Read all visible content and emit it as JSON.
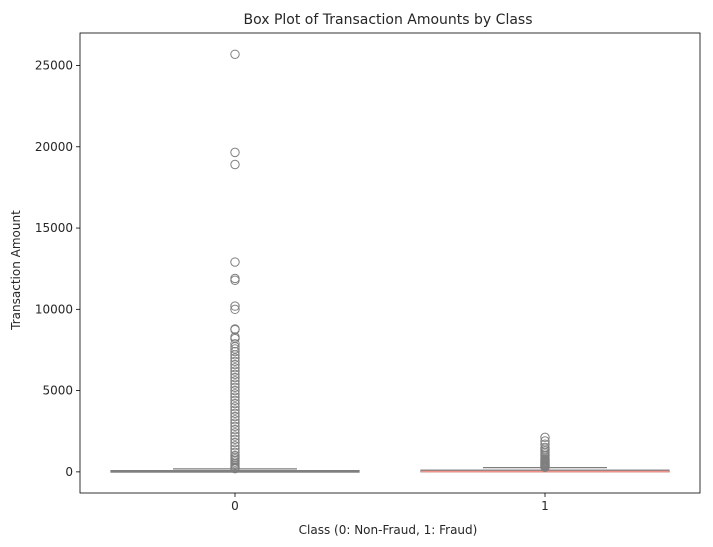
{
  "chart_data": {
    "type": "box",
    "title": "Box Plot of Transaction Amounts by Class",
    "xlabel": "Class (0: Non-Fraud, 1: Fraud)",
    "ylabel": "Transaction Amount",
    "categories": [
      "0",
      "1"
    ],
    "ylim": [
      -1300,
      27000
    ],
    "yticks": [
      0,
      5000,
      10000,
      15000,
      20000,
      25000
    ],
    "grid": false,
    "legend": "none",
    "colors": {
      "box0": "#7fb2d5",
      "box1": "#f2928a",
      "lines": "#7f7f7f",
      "median1": "#f2928a"
    },
    "boxes": [
      {
        "category": "0",
        "q1": 5.6,
        "median": 22,
        "q3": 77,
        "whisker_low": 0,
        "whisker_high": 185,
        "outliers": [
          25691,
          19656,
          18910,
          12910,
          11898,
          11789,
          10199,
          10000,
          8790,
          8750,
          8300,
          8200,
          7880,
          7700,
          7560,
          7400,
          7200,
          7000,
          6800,
          6600,
          6400,
          6200,
          6000,
          5800,
          5600,
          5400,
          5200,
          5000,
          4800,
          4600,
          4400,
          4200,
          4000,
          3800,
          3600,
          3400,
          3200,
          3000,
          2800,
          2600,
          2400,
          2200,
          2000,
          1800,
          1600,
          1400,
          1200,
          1000,
          900,
          800,
          700,
          600,
          500,
          400,
          300,
          250,
          200
        ]
      },
      {
        "category": "1",
        "q1": 1,
        "median": 9.3,
        "q3": 106,
        "whisker_low": 0,
        "whisker_high": 260,
        "outliers": [
          2125,
          1900,
          1700,
          1500,
          1400,
          1300,
          1200,
          1100,
          1000,
          900,
          800,
          750,
          700,
          650,
          600,
          550,
          500,
          450,
          400,
          370,
          340,
          310,
          280
        ]
      }
    ]
  }
}
